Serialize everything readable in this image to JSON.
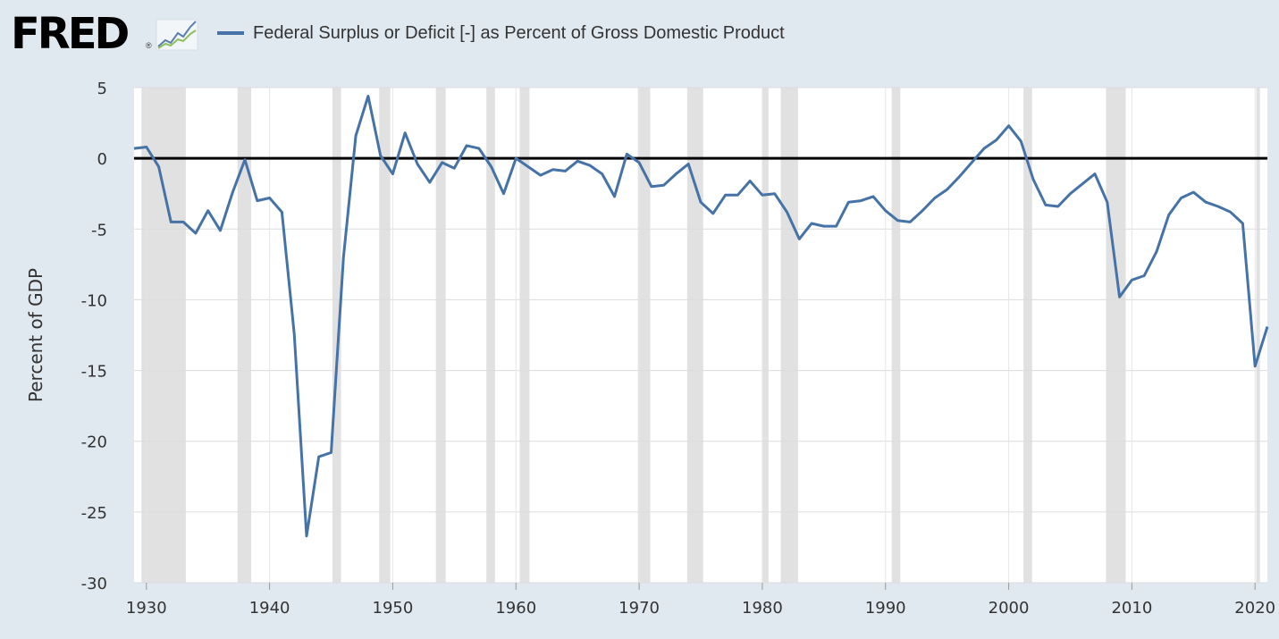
{
  "header": {
    "logo_text": "FRED",
    "logo_mark": "®",
    "logo_icon": "line-chart-icon",
    "legend_label": "Federal Surplus or Deficit [-] as Percent of Gross Domestic Product"
  },
  "chart_data": {
    "type": "line",
    "title": "",
    "xlabel": "",
    "ylabel": "Percent of GDP",
    "xlim": [
      1929,
      2021
    ],
    "ylim": [
      -30,
      5
    ],
    "x_ticks": [
      1930,
      1940,
      1950,
      1960,
      1970,
      1980,
      1990,
      2000,
      2010,
      2020
    ],
    "y_ticks": [
      5,
      0,
      -5,
      -10,
      -15,
      -20,
      -25,
      -30
    ],
    "y_tick_labels": [
      "5",
      "0",
      "-5",
      "-10",
      "-15",
      "-20",
      "-25",
      "-30"
    ],
    "grid": true,
    "zero_line": true,
    "series": [
      {
        "name": "Federal Surplus or Deficit [-] as Percent of Gross Domestic Product",
        "color": "#4572a7",
        "x": [
          1929,
          1930,
          1931,
          1932,
          1933,
          1934,
          1935,
          1936,
          1937,
          1938,
          1939,
          1940,
          1941,
          1942,
          1943,
          1944,
          1945,
          1946,
          1947,
          1948,
          1949,
          1950,
          1951,
          1952,
          1953,
          1954,
          1955,
          1956,
          1957,
          1958,
          1959,
          1960,
          1961,
          1962,
          1963,
          1964,
          1965,
          1966,
          1967,
          1968,
          1969,
          1970,
          1971,
          1972,
          1973,
          1974,
          1975,
          1976,
          1977,
          1978,
          1979,
          1980,
          1981,
          1982,
          1983,
          1984,
          1985,
          1986,
          1987,
          1988,
          1989,
          1990,
          1991,
          1992,
          1993,
          1994,
          1995,
          1996,
          1997,
          1998,
          1999,
          2000,
          2001,
          2002,
          2003,
          2004,
          2005,
          2006,
          2007,
          2008,
          2009,
          2010,
          2011,
          2012,
          2013,
          2014,
          2015,
          2016,
          2017,
          2018,
          2019,
          2020,
          2021
        ],
        "values": [
          0.7,
          0.8,
          -0.6,
          -4.5,
          -4.5,
          -5.3,
          -3.7,
          -5.1,
          -2.4,
          -0.1,
          -3.0,
          -2.8,
          -3.8,
          -12.4,
          -26.7,
          -21.1,
          -20.8,
          -7.0,
          1.6,
          4.4,
          0.2,
          -1.1,
          1.8,
          -0.4,
          -1.7,
          -0.3,
          -0.7,
          0.9,
          0.7,
          -0.6,
          -2.5,
          0.0,
          -0.6,
          -1.2,
          -0.8,
          -0.9,
          -0.2,
          -0.5,
          -1.1,
          -2.7,
          0.3,
          -0.3,
          -2.0,
          -1.9,
          -1.1,
          -0.4,
          -3.1,
          -3.9,
          -2.6,
          -2.6,
          -1.6,
          -2.6,
          -2.5,
          -3.8,
          -5.7,
          -4.6,
          -4.8,
          -4.8,
          -3.1,
          -3.0,
          -2.7,
          -3.7,
          -4.4,
          -4.5,
          -3.7,
          -2.8,
          -2.2,
          -1.3,
          -0.3,
          0.7,
          1.3,
          2.3,
          1.2,
          -1.5,
          -3.3,
          -3.4,
          -2.5,
          -1.8,
          -1.1,
          -3.1,
          -9.8,
          -8.6,
          -8.3,
          -6.6,
          -4.0,
          -2.8,
          -2.4,
          -3.1,
          -3.4,
          -3.8,
          -4.6,
          -14.7,
          -11.9
        ]
      }
    ],
    "recessions": [
      [
        1929.6,
        1933.2
      ],
      [
        1937.4,
        1938.5
      ],
      [
        1945.1,
        1945.8
      ],
      [
        1948.9,
        1949.8
      ],
      [
        1953.5,
        1954.3
      ],
      [
        1957.6,
        1958.3
      ],
      [
        1960.3,
        1961.1
      ],
      [
        1969.9,
        1970.9
      ],
      [
        1973.9,
        1975.2
      ],
      [
        1980.0,
        1980.5
      ],
      [
        1981.5,
        1982.9
      ],
      [
        1990.5,
        1991.2
      ],
      [
        2001.2,
        2001.9
      ],
      [
        2007.9,
        2009.5
      ],
      [
        2020.1,
        2020.4
      ]
    ]
  }
}
